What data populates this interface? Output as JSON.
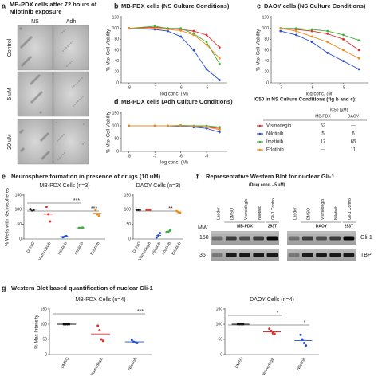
{
  "panel_a": {
    "label": "a",
    "title": [
      "MB-PDX cells after 72 hours of",
      "Nilotinib exposure"
    ],
    "columns": [
      "NS",
      "Adh"
    ],
    "rows": [
      "Control",
      "5 uM",
      "20 uM"
    ]
  },
  "chart_data": [
    {
      "type": "line",
      "label": "b",
      "title": "MB-PDX cells (NS Culture Conditions)",
      "x_label": "log conc. (M)",
      "y_label": "% Max Cell Viability",
      "x": [
        -8,
        -7,
        -6.5,
        -6,
        -5.5,
        -5,
        -4.5
      ],
      "xlim": [
        -8.3,
        -4.2
      ],
      "xticks": [
        -8,
        -7,
        -6,
        -5
      ],
      "ylim": [
        0,
        120
      ],
      "yticks": [
        0,
        20,
        40,
        60,
        80,
        100,
        120
      ],
      "series": [
        {
          "color": "#e0302a",
          "values": [
            100,
            102,
            100,
            98,
            95,
            88,
            65
          ]
        },
        {
          "color": "#2a4fd0",
          "values": [
            100,
            98,
            95,
            85,
            60,
            25,
            5
          ]
        },
        {
          "color": "#3db03d",
          "values": [
            100,
            104,
            100,
            100,
            90,
            75,
            35
          ]
        },
        {
          "color": "#f08a1c",
          "values": [
            100,
            100,
            98,
            96,
            88,
            70,
            45
          ]
        }
      ]
    },
    {
      "type": "line",
      "label": "c",
      "title": "DAOY cells (NS Culture Conditions)",
      "x_label": "log conc. (M)",
      "y_label": "% Max Cell Viability",
      "x": [
        -7,
        -6.5,
        -6,
        -5.5,
        -5,
        -4.5
      ],
      "xlim": [
        -7.3,
        -4.2
      ],
      "xticks": [
        -7,
        -6,
        -5
      ],
      "ylim": [
        0,
        120
      ],
      "yticks": [
        0,
        20,
        40,
        60,
        80,
        100,
        120
      ],
      "series": [
        {
          "color": "#e0302a",
          "values": [
            100,
            98,
            95,
            90,
            80,
            60
          ]
        },
        {
          "color": "#2a4fd0",
          "values": [
            95,
            88,
            75,
            55,
            40,
            25
          ]
        },
        {
          "color": "#3db03d",
          "values": [
            100,
            100,
            98,
            95,
            88,
            78
          ]
        },
        {
          "color": "#f08a1c",
          "values": [
            100,
            95,
            85,
            75,
            60,
            45
          ]
        }
      ]
    },
    {
      "type": "line",
      "label": "d",
      "title": "MB-PDX cells (Adh Culture Conditions)",
      "x_label": "log conc. (M)",
      "y_label": "% Max Cell Viability",
      "x": [
        -8,
        -7,
        -6.5,
        -6,
        -5.5,
        -5,
        -4.5
      ],
      "xlim": [
        -8.3,
        -4.2
      ],
      "xticks": [
        -8,
        -7,
        -6,
        -5
      ],
      "ylim": [
        0,
        150
      ],
      "yticks": [
        0,
        50,
        100,
        150
      ],
      "series": [
        {
          "color": "#e0302a",
          "values": [
            100,
            100,
            100,
            98,
            98,
            95,
            90
          ]
        },
        {
          "color": "#2a4fd0",
          "values": [
            100,
            100,
            100,
            98,
            95,
            90,
            75
          ]
        },
        {
          "color": "#3db03d",
          "values": [
            100,
            100,
            100,
            102,
            100,
            100,
            95
          ]
        },
        {
          "color": "#f08a1c",
          "values": [
            100,
            100,
            100,
            100,
            98,
            95,
            85
          ]
        }
      ]
    },
    {
      "type": "dot",
      "title": "MB-PDX Cells (n=3)",
      "y_label": "% Wells with Neurospheres",
      "categories": [
        "DMSO",
        "Vismodegib",
        "Nilotinib",
        "Imatinib",
        "Erlotinib"
      ],
      "colors": [
        "#111111",
        "#e0302a",
        "#2a4fd0",
        "#3db03d",
        "#f08a1c"
      ],
      "points": [
        [
          102,
          98,
          100
        ],
        [
          110,
          85,
          60
        ],
        [
          6,
          8,
          10
        ],
        [
          38,
          38,
          39
        ],
        [
          100,
          85,
          80
        ]
      ],
      "values": [
        100,
        85,
        8,
        38,
        88
      ],
      "ylim": [
        0,
        150
      ],
      "yticks": [
        0,
        50,
        100,
        150
      ],
      "annotations": [
        "***",
        "***"
      ]
    },
    {
      "type": "dot",
      "title": "DAOY Cells (n=3)",
      "categories": [
        "DMSO",
        "Vismodegib",
        "Nilotinib",
        "Imatinib",
        "Erlotinib"
      ],
      "colors": [
        "#111111",
        "#e0302a",
        "#2a4fd0",
        "#3db03d",
        "#f08a1c"
      ],
      "points": [
        [
          100,
          100,
          100
        ],
        [
          100,
          100,
          100
        ],
        [
          5,
          12,
          20
        ],
        [
          22,
          25,
          30
        ],
        [
          98,
          92,
          90
        ]
      ],
      "values": [
        100,
        100,
        12,
        26,
        93
      ],
      "ylim": [
        0,
        150
      ],
      "yticks": [
        0,
        50,
        100,
        150
      ],
      "annotations": [
        "**"
      ]
    },
    {
      "type": "dot",
      "title": "MB-PDX Cells (n=4)",
      "y_label": "% Max Intensity",
      "categories": [
        "DMSO",
        "Vismodegib",
        "Nilotinib"
      ],
      "colors": [
        "#111111",
        "#e0302a",
        "#2a4fd0"
      ],
      "points": [
        [
          100,
          100,
          100,
          100
        ],
        [
          95,
          80,
          50,
          45
        ],
        [
          48,
          42,
          40,
          38
        ]
      ],
      "values": [
        100,
        68,
        42
      ],
      "ylim": [
        0,
        150
      ],
      "yticks": [
        0,
        50,
        100,
        150
      ],
      "annotations": [
        "***"
      ]
    },
    {
      "type": "dot",
      "title": "DAOY Cells (n=4)",
      "categories": [
        "DMSO",
        "Vismodegib",
        "Nilotinib"
      ],
      "colors": [
        "#111111",
        "#e0302a",
        "#2a4fd0"
      ],
      "points": [
        [
          100,
          100,
          100,
          100
        ],
        [
          85,
          78,
          70,
          68
        ],
        [
          65,
          50,
          38,
          30
        ]
      ],
      "values": [
        100,
        75,
        46
      ],
      "ylim": [
        0,
        150
      ],
      "yticks": [
        0,
        50,
        100,
        150
      ],
      "annotations": [
        "*",
        "*"
      ]
    }
  ],
  "ic50_table": {
    "title": "IC50 in NS Culture Conditions (fig b and c):",
    "header": "IC50 (µM)",
    "columns": [
      "MB-PDX",
      "DAOY"
    ],
    "rows": [
      [
        "Vismodegib",
        52,
        "---"
      ],
      [
        "Nilotinib",
        5,
        6
      ],
      [
        "Imatinib",
        17,
        65
      ],
      [
        "Erlotinib",
        "---",
        11
      ]
    ]
  },
  "panel_e": {
    "label": "e",
    "title": "Neurosphere formation in presence of drugs (10 uM)"
  },
  "panel_f": {
    "label": "f",
    "title": "Representative Western Blot for nuclear Gli-1",
    "subtitle": "(Drug conc. - 5 uM)",
    "mw": "MW",
    "markers": [
      150,
      35
    ],
    "proteins": [
      "Gli-1",
      "TBP"
    ],
    "blots": [
      {
        "lanes": [
          "Ladder",
          "DMSO",
          "Vismodegib",
          "Nilotinib",
          "Gli-1 Control"
        ],
        "groups": [
          "MB-PDX",
          "293T"
        ]
      },
      {
        "lanes": [
          "Ladder",
          "DMSO",
          "Vismodegib",
          "Nilotinib",
          "Gli-1 Control"
        ],
        "groups": [
          "DAOY",
          "293T"
        ]
      }
    ]
  },
  "panel_g": {
    "label": "g",
    "title": "Western Blot based quantification of nuclear Gli-1"
  }
}
